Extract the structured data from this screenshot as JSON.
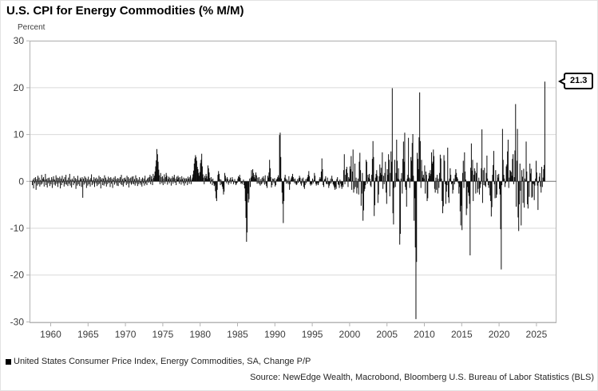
{
  "header": {
    "title": "U.S. CPI for Energy Commodities (% M/M)"
  },
  "chart_data": {
    "type": "bar",
    "title": "U.S. CPI for Energy Commodities (% M/M)",
    "xlabel": "",
    "ylabel": "Percent",
    "ylim": [
      -30,
      30
    ],
    "grid": true,
    "legend_position": "bottom-left",
    "bar_color": "#0d0d0d",
    "y_ticks": [
      30,
      20,
      10,
      0,
      -10,
      -20,
      -30
    ],
    "x_ticks": [
      1960,
      1965,
      1970,
      1975,
      1980,
      1985,
      1990,
      1995,
      2000,
      2005,
      2010,
      2015,
      2020,
      2025
    ],
    "frequency": "monthly",
    "start": "1957-07",
    "end": "2026-02",
    "last_value": 21.3,
    "series": [
      {
        "name": "United States Consumer Price Index, Energy Commodities, SA, Change P/P",
        "values": [
          -0.8,
          0.4,
          -1.5,
          0.7,
          -0.4,
          0.9,
          -1.8,
          0.5,
          -0.9,
          1.2,
          -0.6,
          0.8,
          -1.1,
          0.3,
          -0.7,
          1.4,
          -0.5,
          0.6,
          0.9,
          -1.1,
          0.4,
          1.6,
          -0.8,
          0.5,
          -1.3,
          0.7,
          -0.4,
          0.8,
          -1.0,
          0.3,
          -0.6,
          0.9,
          -1.4,
          0.5,
          1.1,
          -0.7,
          0.4,
          -0.9,
          1.3,
          -0.5,
          0.8,
          -1.2,
          0.7,
          -0.4,
          1.0,
          -1.5,
          0.6,
          -0.8,
          1.2,
          -0.3,
          0.5,
          -1.1,
          0.9,
          -0.6,
          1.4,
          -0.7,
          0.3,
          -1.0,
          0.8,
          -0.5,
          1.6,
          -0.9,
          0.4,
          -1.3,
          0.6,
          0.2,
          -0.8,
          1.1,
          -0.4,
          0.7,
          -1.6,
          0.5,
          -0.9,
          1.2,
          -0.6,
          0.3,
          -1.0,
          0.8,
          0.5,
          -1.2,
          0.9,
          -3.5,
          0.6,
          -0.7,
          1.1,
          -0.4,
          0.8,
          -1.4,
          0.5,
          -0.9,
          1.0,
          -0.6,
          0.4,
          -1.1,
          0.7,
          1.5,
          -0.8,
          0.3,
          -0.5,
          0.9,
          -1.2,
          0.6,
          -0.4,
          0.8,
          -1.0,
          0.5,
          -0.7,
          1.2,
          -0.5,
          0.9,
          -1.5,
          0.4,
          0.7,
          -0.8,
          0.6,
          -0.9,
          1.3,
          -0.5,
          0.8,
          -1.1,
          0.4,
          -0.6,
          1.0,
          -0.3,
          0.7,
          -1.2,
          0.9,
          -0.5,
          0.6,
          -1.4,
          0.3,
          0.8,
          -0.7,
          1.1,
          -0.4,
          0.5,
          -0.9,
          0.7,
          -1.0,
          0.6,
          -0.3,
          0.9,
          -0.6,
          1.4,
          -0.8,
          0.5,
          -1.1,
          0.7,
          -0.4,
          0.8,
          0.4,
          -0.8,
          1.2,
          -0.5,
          0.9,
          -1.3,
          0.6,
          -0.4,
          0.8,
          -0.7,
          1.0,
          -0.5,
          1.1,
          -0.6,
          0.5,
          -0.9,
          1.3,
          -0.4,
          0.7,
          -1.0,
          0.4,
          -0.6,
          0.9,
          -0.3,
          -0.7,
          0.5,
          -1.1,
          0.8,
          -0.4,
          0.6,
          -0.9,
          1.2,
          -0.5,
          0.3,
          -0.8,
          0.6,
          0.8,
          -0.3,
          0.9,
          1.4,
          -0.6,
          1.1,
          0.5,
          -0.8,
          1.6,
          0.7,
          1.2,
          2.1,
          3.2,
          4.5,
          6.9,
          5.8,
          4.2,
          2.5,
          1.3,
          -0.6,
          1.8,
          0.9,
          -0.4,
          1.1,
          -0.8,
          0.6,
          1.5,
          -0.5,
          0.9,
          1.8,
          1.2,
          -0.7,
          0.5,
          1.0,
          -0.4,
          0.8,
          0.5,
          -0.9,
          0.7,
          1.1,
          -0.5,
          0.8,
          1.4,
          -0.3,
          0.6,
          -0.8,
          1.0,
          0.4,
          1.2,
          0.8,
          -0.5,
          0.9,
          0.4,
          -0.7,
          1.1,
          0.5,
          -0.4,
          0.8,
          -0.9,
          0.6,
          -0.4,
          0.7,
          0.5,
          -0.8,
          1.0,
          0.6,
          -0.5,
          0.9,
          1.3,
          -0.6,
          0.4,
          0.8,
          1.5,
          2.3,
          3.8,
          4.9,
          5.6,
          5.2,
          4.4,
          3.1,
          2.6,
          1.8,
          1.2,
          2.0,
          3.9,
          4.6,
          5.9,
          3.2,
          1.5,
          0.8,
          -0.6,
          1.2,
          0.7,
          1.6,
          1.1,
          0.5,
          3.4,
          2.8,
          1.9,
          0.7,
          -0.5,
          0.9,
          0.4,
          -0.8,
          0.6,
          -0.4,
          -1.0,
          -0.7,
          -2.1,
          -3.6,
          -4.2,
          -1.8,
          1.4,
          2.2,
          1.6,
          0.5,
          -0.8,
          0.4,
          -0.6,
          -1.1,
          -1.6,
          -2.8,
          -2.2,
          1.8,
          1.2,
          0.6,
          -0.4,
          0.9,
          0.5,
          -0.7,
          -0.3,
          0.4,
          0.8,
          -0.5,
          0.3,
          0.9,
          0.4,
          -0.6,
          -0.2,
          0.5,
          -0.4,
          -0.8,
          -0.5,
          -0.3,
          0.6,
          1.1,
          0.9,
          1.4,
          0.7,
          -0.5,
          -0.3,
          -0.6,
          -0.2,
          0.4,
          -0.8,
          -1.5,
          -4.2,
          -7.8,
          -12.9,
          -10.9,
          -2.6,
          -4.5,
          -3.8,
          0.6,
          -1.2,
          0.8,
          2.4,
          1.1,
          2.6,
          1.8,
          0.9,
          1.4,
          0.6,
          1.9,
          1.3,
          -0.5,
          0.8,
          -0.4,
          0.9,
          -0.6,
          -0.9,
          0.5,
          -0.6,
          0.8,
          -0.4,
          1.1,
          0.6,
          -0.7,
          1.3,
          -0.5,
          -1.0,
          -1.4,
          1.2,
          0.8,
          1.9,
          4.6,
          2.8,
          0.9,
          -1.3,
          -0.8,
          0.6,
          0.5,
          -0.4,
          0.7,
          -1.1,
          -0.8,
          0.4,
          0.6,
          0.9,
          1.3,
          0.8,
          9.9,
          10.4,
          5.2,
          0.6,
          -2.4,
          -4.8,
          -8.9,
          -4.2,
          0.8,
          1.4,
          0.6,
          -0.5,
          0.4,
          -0.3,
          -0.6,
          1.1,
          -1.8,
          -0.6,
          0.4,
          0.8,
          1.1,
          1.6,
          0.9,
          0.5,
          -0.4,
          0.6,
          -0.5,
          -0.8,
          -0.6,
          0.5,
          -0.3,
          0.7,
          1.2,
          0.8,
          -0.5,
          -0.9,
          0.6,
          -0.4,
          0.8,
          -1.2,
          -1.6,
          -0.8,
          0.5,
          -0.4,
          0.6,
          0.9,
          1.4,
          2.2,
          1.1,
          -0.6,
          -0.9,
          -0.5,
          -0.7,
          0.6,
          -0.4,
          0.3,
          1.8,
          1.2,
          -0.5,
          -0.9,
          -0.6,
          -0.3,
          -0.8,
          -0.4,
          0.5,
          0.9,
          0.6,
          2.1,
          4.9,
          2.6,
          -0.8,
          -1.2,
          0.4,
          0.6,
          1.1,
          -0.5,
          -0.6,
          0.8,
          -0.6,
          -1.4,
          -0.9,
          -0.5,
          0.6,
          -0.4,
          1.2,
          0.5,
          -0.6,
          -0.9,
          -1.3,
          -1.8,
          -1.2,
          -1.6,
          0.5,
          0.9,
          -0.6,
          -0.8,
          -1.4,
          0.4,
          -0.5,
          -1.1,
          -1.6,
          -0.8,
          -1.2,
          2.4,
          5.8,
          -0.6,
          1.4,
          2.6,
          3.1,
          1.8,
          -1.2,
          0.9,
          0.6,
          3.2,
          2.6,
          5.4,
          -1.8,
          2.1,
          6.8,
          -2.4,
          -1.6,
          3.8,
          -1.2,
          0.8,
          -2.6,
          -1.4,
          0.6,
          -2.8,
          4.2,
          6.1,
          2.4,
          -5.2,
          -2.6,
          1.8,
          -8.4,
          -6.2,
          -2.1,
          -1.6,
          -0.8,
          4.6,
          4.2,
          -0.5,
          1.4,
          0.8,
          1.6,
          0.6,
          -0.9,
          -1.2,
          1.4,
          4.8,
          8.6,
          5.2,
          -7.4,
          -5.1,
          0.8,
          1.6,
          2.4,
          1.2,
          -4.6,
          -2.8,
          1.1,
          3.6,
          1.8,
          2.9,
          1.4,
          6.2,
          -1.6,
          1.2,
          -0.6,
          1.8,
          4.2,
          -2.4,
          -4.8,
          2.6,
          1.4,
          5.8,
          4.6,
          -3.2,
          1.8,
          6.4,
          4.2,
          19.9,
          -6.8,
          -9.2,
          -1.4,
          4.6,
          -1.2,
          1.8,
          8.9,
          4.4,
          0.6,
          2.8,
          0.4,
          -13.5,
          -11.2,
          0.6,
          1.8,
          -2.6,
          4.8,
          8.5,
          4.2,
          10.4,
          -1.2,
          -1.8,
          -5.4,
          0.6,
          1.4,
          9.3,
          0.8,
          -1.4,
          0.6,
          5.2,
          4.4,
          8.2,
          10.1,
          1.2,
          -8.4,
          -3.6,
          -14.1,
          -29.4,
          -17.2,
          6.1,
          4.8,
          2.6,
          9.4,
          19.0,
          8.6,
          -1.4,
          4.6,
          2.2,
          0.8,
          1.4,
          0.6,
          3.4,
          -2.6,
          2.1,
          1.4,
          -4.2,
          -3.6,
          0.6,
          1.8,
          1.2,
          2.4,
          1.6,
          6.2,
          3.8,
          4.2,
          6.8,
          5.4,
          -1.6,
          -2.4,
          0.8,
          -1.8,
          1.4,
          -2.6,
          0.6,
          -1.4,
          1.8,
          5.7,
          4.9,
          0.6,
          -4.2,
          -6.8,
          -5.3,
          5.6,
          4.4,
          -0.6,
          -4.8,
          -2.2,
          -0.8,
          7.2,
          -3.4,
          -4.6,
          0.6,
          2.8,
          1.4,
          -0.6,
          -0.4,
          -2.6,
          -1.8,
          0.6,
          -0.6,
          1.4,
          2.6,
          1.8,
          0.9,
          0.6,
          -0.4,
          -2.6,
          -1.2,
          -6.4,
          -9.4,
          -5.2,
          -10.4,
          1.8,
          4.4,
          -1.4,
          6.2,
          2.1,
          0.4,
          -7.2,
          -5.8,
          -1.2,
          -2.4,
          -3.1,
          -4.8,
          -15.8,
          2.9,
          8.1,
          2.3,
          4.6,
          -4.2,
          1.4,
          2.8,
          2.2,
          -2.6,
          1.8,
          4.0,
          -2.4,
          -1.6,
          0.8,
          -2.8,
          -1.4,
          -0.6,
          2.8,
          11.1,
          -4.6,
          2.4,
          -0.8,
          2.9,
          -0.9,
          -1.2,
          1.8,
          5.5,
          0.6,
          -0.8,
          -1.4,
          -0.2,
          -3.0,
          -4.2,
          -7.5,
          -5.5,
          1.4,
          3.5,
          6.5,
          -0.6,
          -3.6,
          2.4,
          -3.5,
          -2.8,
          1.4,
          0.8,
          1.6,
          -1.6,
          -2.8,
          -10.2,
          -18.8,
          -0.8,
          11.2,
          4.6,
          1.4,
          0.6,
          -1.2,
          -0.4,
          3.2,
          3.6,
          6.4,
          8.9,
          -1.4,
          0.8,
          2.4,
          2.2,
          2.0,
          1.2,
          4.8,
          5.8,
          -0.6,
          0.9,
          6.6,
          16.5,
          -5.4,
          4.4,
          11.2,
          -7.7,
          -10.6,
          -4.9,
          3.8,
          -2.0,
          -9.4,
          2.4,
          1.0,
          -4.6,
          2.7,
          -5.6,
          0.6,
          0.2,
          8.5,
          2.1,
          -4.9,
          -5.8,
          -0.2,
          -3.3,
          3.8,
          1.7,
          2.7,
          -3.5,
          -3.3,
          -0.5,
          -0.6,
          -4.0,
          -0.9,
          0.6,
          4.4,
          1.9,
          -0.9,
          -6.1,
          -0.3,
          1.0,
          1.8,
          -1.1,
          -2.4,
          3.1,
          -1.2,
          0.8,
          2.6,
          3.5,
          21.3
        ]
      }
    ]
  },
  "annotation": {
    "label": "21.3"
  },
  "legend": {
    "label": "United States Consumer Price Index, Energy Commodities, SA, Change P/P"
  },
  "footer": {
    "source": "Source: NewEdge Wealth, Macrobond, Bloomberg U.S. Bureau of Labor Statistics (BLS)"
  },
  "colors": {
    "bar": "#0d0d0d",
    "grid": "#d9d9d9",
    "plot_border": "#b3b3b3",
    "zero_line": "#7a7a7a",
    "tick_text": "#3d3d3d",
    "callout_border": "#000000"
  }
}
